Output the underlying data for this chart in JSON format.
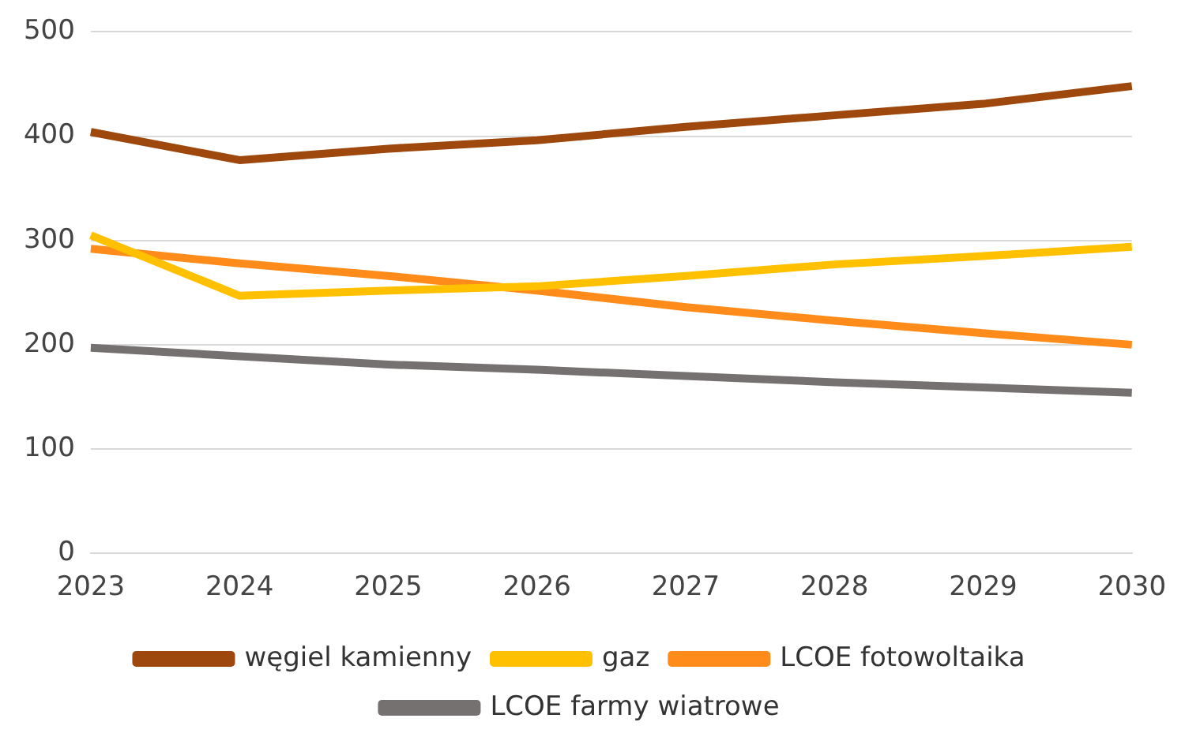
{
  "chart_data": {
    "type": "line",
    "categories": [
      "2023",
      "2024",
      "2025",
      "2026",
      "2027",
      "2028",
      "2029",
      "2030"
    ],
    "series": [
      {
        "name": "węgiel kamienny",
        "color": "#9e480e",
        "values": [
          404,
          377,
          388,
          396,
          409,
          420,
          431,
          448
        ]
      },
      {
        "name": "gaz",
        "color": "#ffc000",
        "values": [
          305,
          247,
          252,
          256,
          266,
          277,
          285,
          294
        ]
      },
      {
        "name": "LCOE fotowoltaika",
        "color": "#ff8c1a",
        "values": [
          292,
          278,
          266,
          252,
          236,
          223,
          211,
          200
        ]
      },
      {
        "name": "LCOE farmy wiatrowe",
        "color": "#767171",
        "values": [
          197,
          189,
          181,
          176,
          170,
          164,
          159,
          154
        ]
      }
    ],
    "ylim": [
      0,
      500
    ],
    "yticks": [
      0,
      100,
      200,
      300,
      400,
      500
    ],
    "grid": "y",
    "legend": "bottom",
    "marker": "none",
    "line_style": "solid"
  }
}
